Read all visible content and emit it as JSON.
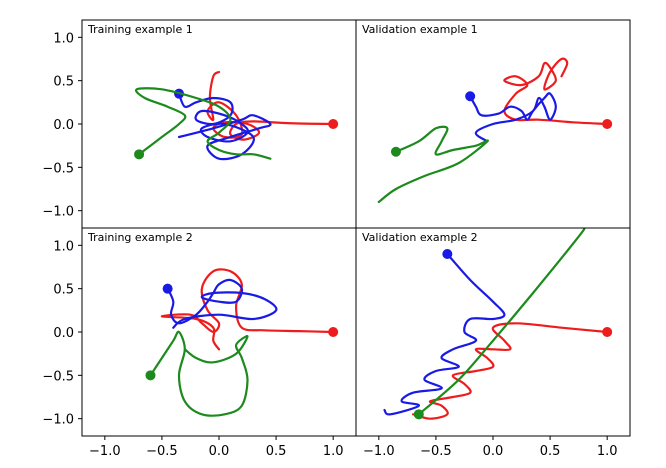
{
  "chart_data": {
    "type": "line",
    "layout": "2x2 grid of panels with shared axes",
    "xlim": [
      -1.2,
      1.2
    ],
    "ylim": [
      -1.2,
      1.2
    ],
    "x_ticks": [
      -1.0,
      -0.5,
      0.0,
      0.5,
      1.0
    ],
    "y_ticks": [
      1.0,
      0.5,
      0.0,
      -0.5,
      -1.0
    ],
    "x_tick_labels": [
      "−1.0",
      "−0.5",
      "0.0",
      "0.5",
      "1.0"
    ],
    "y_tick_labels": [
      "1.0",
      "0.5",
      "0.0",
      "−0.5",
      "−1.0"
    ],
    "grid": false,
    "colors": {
      "red": "#ee1c1c",
      "blue": "#1a1ae6",
      "green": "#1c8a1c"
    },
    "panels": [
      {
        "id": "train-1",
        "title": "Training example 1",
        "series": [
          {
            "color": "red",
            "start_marker": [
              1.0,
              0.0
            ],
            "points": [
              [
                1.0,
                0.0
              ],
              [
                0.6,
                0.01
              ],
              [
                0.3,
                0.03
              ],
              [
                0.15,
                0.0
              ],
              [
                0.1,
                -0.12
              ],
              [
                0.22,
                -0.18
              ],
              [
                0.35,
                -0.1
              ],
              [
                0.25,
                0.0
              ],
              [
                0.05,
                0.02
              ],
              [
                -0.05,
                -0.05
              ],
              [
                0.05,
                -0.15
              ],
              [
                0.2,
                -0.12
              ],
              [
                0.15,
                0.1
              ],
              [
                0.0,
                0.25
              ],
              [
                -0.1,
                0.15
              ],
              [
                -0.05,
                0.05
              ],
              [
                -0.08,
                0.3
              ],
              [
                -0.05,
                0.55
              ],
              [
                0.0,
                0.6
              ]
            ]
          },
          {
            "color": "blue",
            "start_marker": [
              -0.35,
              0.35
            ],
            "points": [
              [
                -0.35,
                0.35
              ],
              [
                -0.3,
                0.2
              ],
              [
                -0.2,
                0.25
              ],
              [
                -0.05,
                0.3
              ],
              [
                0.1,
                0.25
              ],
              [
                0.1,
                0.1
              ],
              [
                -0.05,
                0.0
              ],
              [
                -0.2,
                0.05
              ],
              [
                -0.15,
                0.15
              ],
              [
                0.05,
                0.1
              ],
              [
                0.2,
                0.0
              ],
              [
                0.25,
                -0.1
              ],
              [
                0.1,
                -0.2
              ],
              [
                -0.1,
                -0.15
              ],
              [
                -0.15,
                -0.05
              ],
              [
                0.05,
                0.0
              ],
              [
                0.3,
                -0.15
              ],
              [
                0.2,
                -0.35
              ],
              [
                0.0,
                -0.4
              ],
              [
                -0.1,
                -0.25
              ],
              [
                0.1,
                -0.15
              ],
              [
                0.35,
                -0.05
              ],
              [
                0.45,
                0.0
              ],
              [
                0.3,
                0.1
              ],
              [
                0.2,
                0.05
              ],
              [
                -0.05,
                -0.05
              ],
              [
                -0.35,
                -0.15
              ]
            ]
          },
          {
            "color": "green",
            "start_marker": [
              -0.7,
              -0.35
            ],
            "points": [
              [
                -0.7,
                -0.35
              ],
              [
                -0.5,
                -0.15
              ],
              [
                -0.35,
                0.0
              ],
              [
                -0.3,
                0.1
              ],
              [
                -0.45,
                0.2
              ],
              [
                -0.65,
                0.3
              ],
              [
                -0.72,
                0.4
              ],
              [
                -0.5,
                0.4
              ],
              [
                -0.2,
                0.3
              ],
              [
                0.0,
                0.2
              ],
              [
                0.1,
                0.05
              ],
              [
                0.0,
                -0.1
              ],
              [
                -0.1,
                -0.2
              ],
              [
                0.0,
                -0.3
              ],
              [
                0.15,
                -0.35
              ],
              [
                0.3,
                -0.35
              ],
              [
                0.45,
                -0.4
              ]
            ]
          }
        ]
      },
      {
        "id": "val-1",
        "title": "Validation example 1",
        "series": [
          {
            "color": "red",
            "start_marker": [
              1.0,
              0.0
            ],
            "points": [
              [
                1.0,
                0.0
              ],
              [
                0.7,
                0.02
              ],
              [
                0.4,
                0.05
              ],
              [
                0.2,
                0.05
              ],
              [
                0.1,
                0.15
              ],
              [
                0.2,
                0.35
              ],
              [
                0.3,
                0.45
              ],
              [
                0.2,
                0.55
              ],
              [
                0.1,
                0.5
              ],
              [
                0.25,
                0.45
              ],
              [
                0.4,
                0.55
              ],
              [
                0.45,
                0.7
              ],
              [
                0.5,
                0.65
              ],
              [
                0.55,
                0.5
              ],
              [
                0.45,
                0.4
              ],
              [
                0.5,
                0.6
              ],
              [
                0.6,
                0.75
              ],
              [
                0.65,
                0.7
              ],
              [
                0.6,
                0.55
              ]
            ]
          },
          {
            "color": "blue",
            "start_marker": [
              -0.2,
              0.32
            ],
            "points": [
              [
                -0.2,
                0.32
              ],
              [
                -0.15,
                0.2
              ],
              [
                -0.1,
                0.1
              ],
              [
                0.05,
                0.12
              ],
              [
                0.15,
                0.2
              ],
              [
                0.25,
                0.15
              ],
              [
                0.3,
                0.05
              ],
              [
                0.35,
                0.15
              ],
              [
                0.45,
                0.3
              ],
              [
                0.5,
                0.35
              ],
              [
                0.55,
                0.2
              ],
              [
                0.5,
                0.05
              ],
              [
                0.45,
                0.2
              ],
              [
                0.4,
                0.3
              ],
              [
                0.35,
                0.15
              ],
              [
                0.2,
                0.05
              ],
              [
                0.0,
                0.0
              ],
              [
                -0.15,
                -0.1
              ],
              [
                -0.05,
                -0.2
              ]
            ]
          },
          {
            "color": "green",
            "start_marker": [
              -0.85,
              -0.32
            ],
            "points": [
              [
                -0.85,
                -0.32
              ],
              [
                -0.65,
                -0.2
              ],
              [
                -0.5,
                -0.05
              ],
              [
                -0.4,
                -0.05
              ],
              [
                -0.45,
                -0.2
              ],
              [
                -0.5,
                -0.35
              ],
              [
                -0.35,
                -0.3
              ],
              [
                -0.15,
                -0.25
              ],
              [
                -0.05,
                -0.2
              ],
              [
                -0.3,
                -0.45
              ],
              [
                -0.6,
                -0.6
              ],
              [
                -0.85,
                -0.75
              ],
              [
                -1.0,
                -0.9
              ]
            ]
          }
        ]
      },
      {
        "id": "train-2",
        "title": "Training example 2",
        "series": [
          {
            "color": "red",
            "start_marker": [
              1.0,
              0.0
            ],
            "points": [
              [
                1.0,
                0.0
              ],
              [
                0.7,
                0.01
              ],
              [
                0.4,
                0.02
              ],
              [
                0.2,
                0.05
              ],
              [
                0.15,
                0.3
              ],
              [
                0.2,
                0.55
              ],
              [
                0.1,
                0.7
              ],
              [
                -0.05,
                0.7
              ],
              [
                -0.15,
                0.5
              ],
              [
                -0.1,
                0.25
              ],
              [
                0.0,
                0.1
              ],
              [
                -0.05,
                0.0
              ],
              [
                -0.15,
                0.1
              ],
              [
                -0.25,
                0.2
              ],
              [
                -0.5,
                0.18
              ],
              [
                -0.2,
                0.15
              ],
              [
                -0.05,
                0.05
              ],
              [
                -0.05,
                -0.1
              ],
              [
                0.0,
                -0.2
              ]
            ]
          },
          {
            "color": "blue",
            "start_marker": [
              -0.45,
              0.5
            ],
            "points": [
              [
                -0.45,
                0.5
              ],
              [
                -0.4,
                0.35
              ],
              [
                -0.42,
                0.2
              ],
              [
                -0.35,
                0.1
              ],
              [
                -0.2,
                0.2
              ],
              [
                -0.1,
                0.35
              ],
              [
                -0.05,
                0.45
              ],
              [
                0.0,
                0.55
              ],
              [
                0.1,
                0.6
              ],
              [
                0.2,
                0.5
              ],
              [
                0.15,
                0.35
              ],
              [
                0.0,
                0.35
              ],
              [
                -0.15,
                0.4
              ],
              [
                -0.05,
                0.45
              ],
              [
                0.2,
                0.45
              ],
              [
                0.4,
                0.38
              ],
              [
                0.5,
                0.25
              ],
              [
                0.3,
                0.15
              ],
              [
                0.0,
                0.2
              ],
              [
                -0.3,
                0.15
              ],
              [
                -0.4,
                0.05
              ]
            ]
          },
          {
            "color": "green",
            "start_marker": [
              -0.6,
              -0.5
            ],
            "points": [
              [
                -0.6,
                -0.5
              ],
              [
                -0.5,
                -0.3
              ],
              [
                -0.4,
                -0.1
              ],
              [
                -0.35,
                0.0
              ],
              [
                -0.3,
                -0.2
              ],
              [
                -0.35,
                -0.5
              ],
              [
                -0.3,
                -0.8
              ],
              [
                -0.15,
                -0.95
              ],
              [
                0.05,
                -0.95
              ],
              [
                0.2,
                -0.85
              ],
              [
                0.25,
                -0.55
              ],
              [
                0.2,
                -0.3
              ],
              [
                0.15,
                -0.15
              ],
              [
                0.25,
                -0.05
              ],
              [
                0.15,
                -0.25
              ],
              [
                -0.05,
                -0.35
              ],
              [
                -0.2,
                -0.3
              ],
              [
                -0.3,
                -0.2
              ]
            ]
          }
        ]
      },
      {
        "id": "val-2",
        "title": "Validation example 2",
        "series": [
          {
            "color": "red",
            "start_marker": [
              1.0,
              0.0
            ],
            "points": [
              [
                1.0,
                0.0
              ],
              [
                0.6,
                0.05
              ],
              [
                0.2,
                0.1
              ],
              [
                0.0,
                0.05
              ],
              [
                0.1,
                -0.1
              ],
              [
                0.15,
                -0.2
              ],
              [
                0.0,
                -0.2
              ],
              [
                -0.15,
                -0.2
              ],
              [
                -0.05,
                -0.3
              ],
              [
                0.0,
                -0.4
              ],
              [
                -0.15,
                -0.45
              ],
              [
                -0.35,
                -0.5
              ],
              [
                -0.25,
                -0.6
              ],
              [
                -0.2,
                -0.7
              ],
              [
                -0.35,
                -0.75
              ],
              [
                -0.55,
                -0.8
              ],
              [
                -0.45,
                -0.85
              ],
              [
                -0.4,
                -0.95
              ],
              [
                -0.55,
                -1.0
              ],
              [
                -0.7,
                -0.95
              ]
            ]
          },
          {
            "color": "blue",
            "start_marker": [
              -0.4,
              0.9
            ],
            "points": [
              [
                -0.4,
                0.9
              ],
              [
                -0.2,
                0.6
              ],
              [
                0.0,
                0.35
              ],
              [
                0.1,
                0.2
              ],
              [
                0.0,
                0.15
              ],
              [
                -0.2,
                0.15
              ],
              [
                -0.25,
                0.0
              ],
              [
                -0.15,
                -0.1
              ],
              [
                -0.35,
                -0.2
              ],
              [
                -0.45,
                -0.3
              ],
              [
                -0.3,
                -0.4
              ],
              [
                -0.5,
                -0.45
              ],
              [
                -0.6,
                -0.55
              ],
              [
                -0.45,
                -0.65
              ],
              [
                -0.7,
                -0.7
              ],
              [
                -0.8,
                -0.8
              ],
              [
                -0.65,
                -0.85
              ],
              [
                -0.9,
                -0.95
              ],
              [
                -0.95,
                -0.9
              ]
            ]
          },
          {
            "color": "green",
            "start_marker": [
              -0.65,
              -0.95
            ],
            "points": [
              [
                -0.65,
                -0.95
              ],
              [
                -0.3,
                -0.55
              ],
              [
                0.0,
                -0.1
              ],
              [
                0.35,
                0.45
              ],
              [
                0.75,
                1.1
              ],
              [
                0.8,
                1.2
              ]
            ]
          }
        ]
      }
    ]
  }
}
